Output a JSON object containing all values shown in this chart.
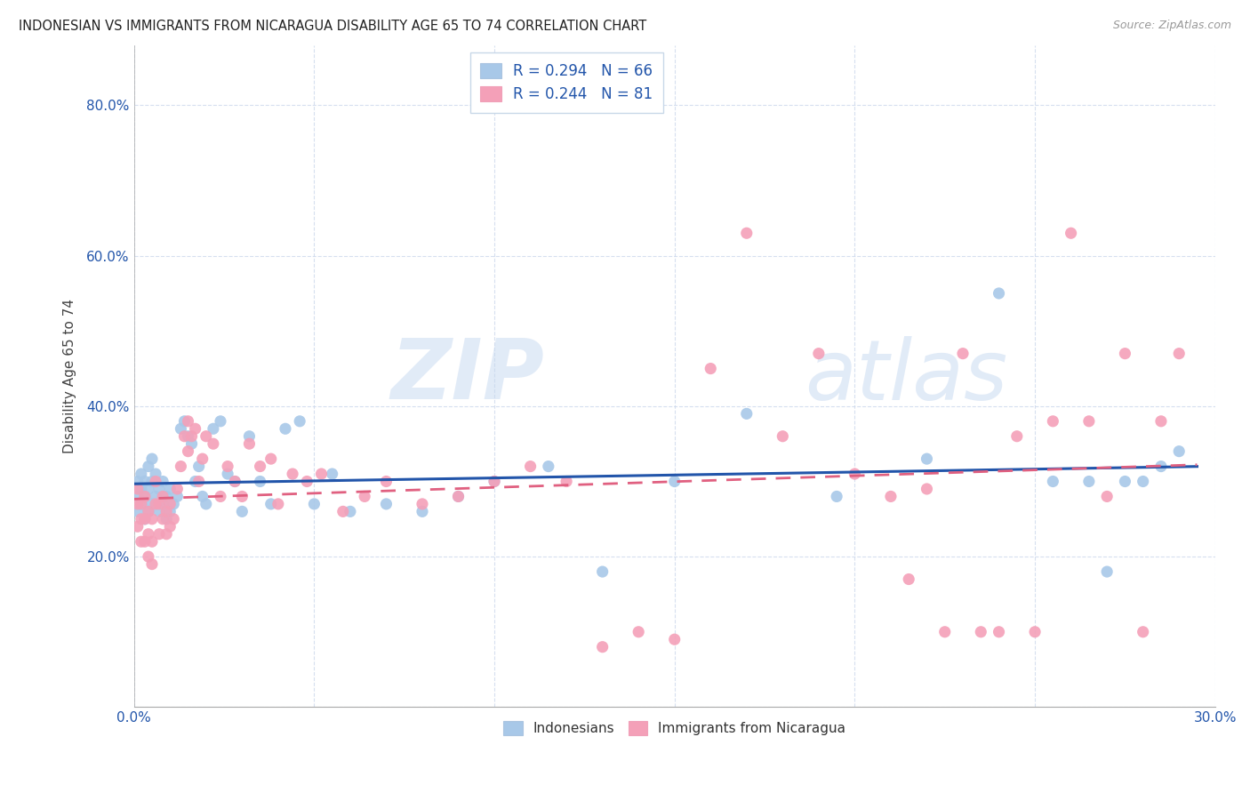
{
  "title": "INDONESIAN VS IMMIGRANTS FROM NICARAGUA DISABILITY AGE 65 TO 74 CORRELATION CHART",
  "source": "Source: ZipAtlas.com",
  "ylabel_label": "Disability Age 65 to 74",
  "xlim": [
    0.0,
    0.3
  ],
  "ylim": [
    0.0,
    0.88
  ],
  "xticks": [
    0.0,
    0.05,
    0.1,
    0.15,
    0.2,
    0.25,
    0.3
  ],
  "xtick_labels": [
    "0.0%",
    "",
    "",
    "",
    "",
    "",
    "30.0%"
  ],
  "yticks": [
    0.0,
    0.2,
    0.4,
    0.6,
    0.8
  ],
  "ytick_labels": [
    "",
    "20.0%",
    "40.0%",
    "60.0%",
    "80.0%"
  ],
  "indonesian_R": 0.294,
  "indonesian_N": 66,
  "nicaragua_R": 0.244,
  "nicaragua_N": 81,
  "indonesian_color": "#a8c8e8",
  "nicaragua_color": "#f4a0b8",
  "indonesian_line_color": "#2255aa",
  "nicaragua_line_color": "#e06080",
  "ind_x": [
    0.001,
    0.001,
    0.001,
    0.002,
    0.002,
    0.002,
    0.003,
    0.003,
    0.003,
    0.004,
    0.004,
    0.004,
    0.005,
    0.005,
    0.005,
    0.006,
    0.006,
    0.007,
    0.007,
    0.008,
    0.008,
    0.009,
    0.009,
    0.01,
    0.01,
    0.011,
    0.012,
    0.013,
    0.014,
    0.015,
    0.016,
    0.017,
    0.018,
    0.019,
    0.02,
    0.022,
    0.024,
    0.026,
    0.028,
    0.03,
    0.032,
    0.035,
    0.038,
    0.042,
    0.046,
    0.05,
    0.055,
    0.06,
    0.07,
    0.08,
    0.09,
    0.1,
    0.115,
    0.13,
    0.15,
    0.17,
    0.195,
    0.22,
    0.24,
    0.255,
    0.265,
    0.27,
    0.275,
    0.28,
    0.285,
    0.29
  ],
  "ind_y": [
    0.26,
    0.28,
    0.3,
    0.27,
    0.29,
    0.31,
    0.25,
    0.28,
    0.3,
    0.26,
    0.29,
    0.32,
    0.27,
    0.3,
    0.33,
    0.28,
    0.31,
    0.26,
    0.29,
    0.27,
    0.3,
    0.25,
    0.28,
    0.26,
    0.29,
    0.27,
    0.28,
    0.37,
    0.38,
    0.36,
    0.35,
    0.3,
    0.32,
    0.28,
    0.27,
    0.37,
    0.38,
    0.31,
    0.3,
    0.26,
    0.36,
    0.3,
    0.27,
    0.37,
    0.38,
    0.27,
    0.31,
    0.26,
    0.27,
    0.26,
    0.28,
    0.3,
    0.32,
    0.18,
    0.3,
    0.39,
    0.28,
    0.33,
    0.55,
    0.3,
    0.3,
    0.18,
    0.3,
    0.3,
    0.32,
    0.34
  ],
  "nic_x": [
    0.001,
    0.001,
    0.001,
    0.002,
    0.002,
    0.002,
    0.003,
    0.003,
    0.003,
    0.004,
    0.004,
    0.004,
    0.005,
    0.005,
    0.005,
    0.006,
    0.006,
    0.007,
    0.007,
    0.008,
    0.008,
    0.009,
    0.009,
    0.01,
    0.01,
    0.011,
    0.012,
    0.013,
    0.014,
    0.015,
    0.015,
    0.016,
    0.017,
    0.018,
    0.019,
    0.02,
    0.022,
    0.024,
    0.026,
    0.028,
    0.03,
    0.032,
    0.035,
    0.038,
    0.04,
    0.044,
    0.048,
    0.052,
    0.058,
    0.064,
    0.07,
    0.08,
    0.09,
    0.1,
    0.11,
    0.12,
    0.13,
    0.14,
    0.15,
    0.16,
    0.17,
    0.18,
    0.19,
    0.2,
    0.21,
    0.215,
    0.22,
    0.225,
    0.23,
    0.235,
    0.24,
    0.245,
    0.25,
    0.255,
    0.26,
    0.265,
    0.27,
    0.275,
    0.28,
    0.285,
    0.29
  ],
  "nic_y": [
    0.24,
    0.27,
    0.29,
    0.25,
    0.22,
    0.27,
    0.22,
    0.25,
    0.28,
    0.2,
    0.23,
    0.26,
    0.19,
    0.22,
    0.25,
    0.27,
    0.3,
    0.23,
    0.27,
    0.25,
    0.28,
    0.23,
    0.26,
    0.24,
    0.27,
    0.25,
    0.29,
    0.32,
    0.36,
    0.34,
    0.38,
    0.36,
    0.37,
    0.3,
    0.33,
    0.36,
    0.35,
    0.28,
    0.32,
    0.3,
    0.28,
    0.35,
    0.32,
    0.33,
    0.27,
    0.31,
    0.3,
    0.31,
    0.26,
    0.28,
    0.3,
    0.27,
    0.28,
    0.3,
    0.32,
    0.3,
    0.08,
    0.1,
    0.09,
    0.45,
    0.63,
    0.36,
    0.47,
    0.31,
    0.28,
    0.17,
    0.29,
    0.1,
    0.47,
    0.1,
    0.1,
    0.36,
    0.1,
    0.38,
    0.63,
    0.38,
    0.28,
    0.47,
    0.1,
    0.38,
    0.47
  ]
}
